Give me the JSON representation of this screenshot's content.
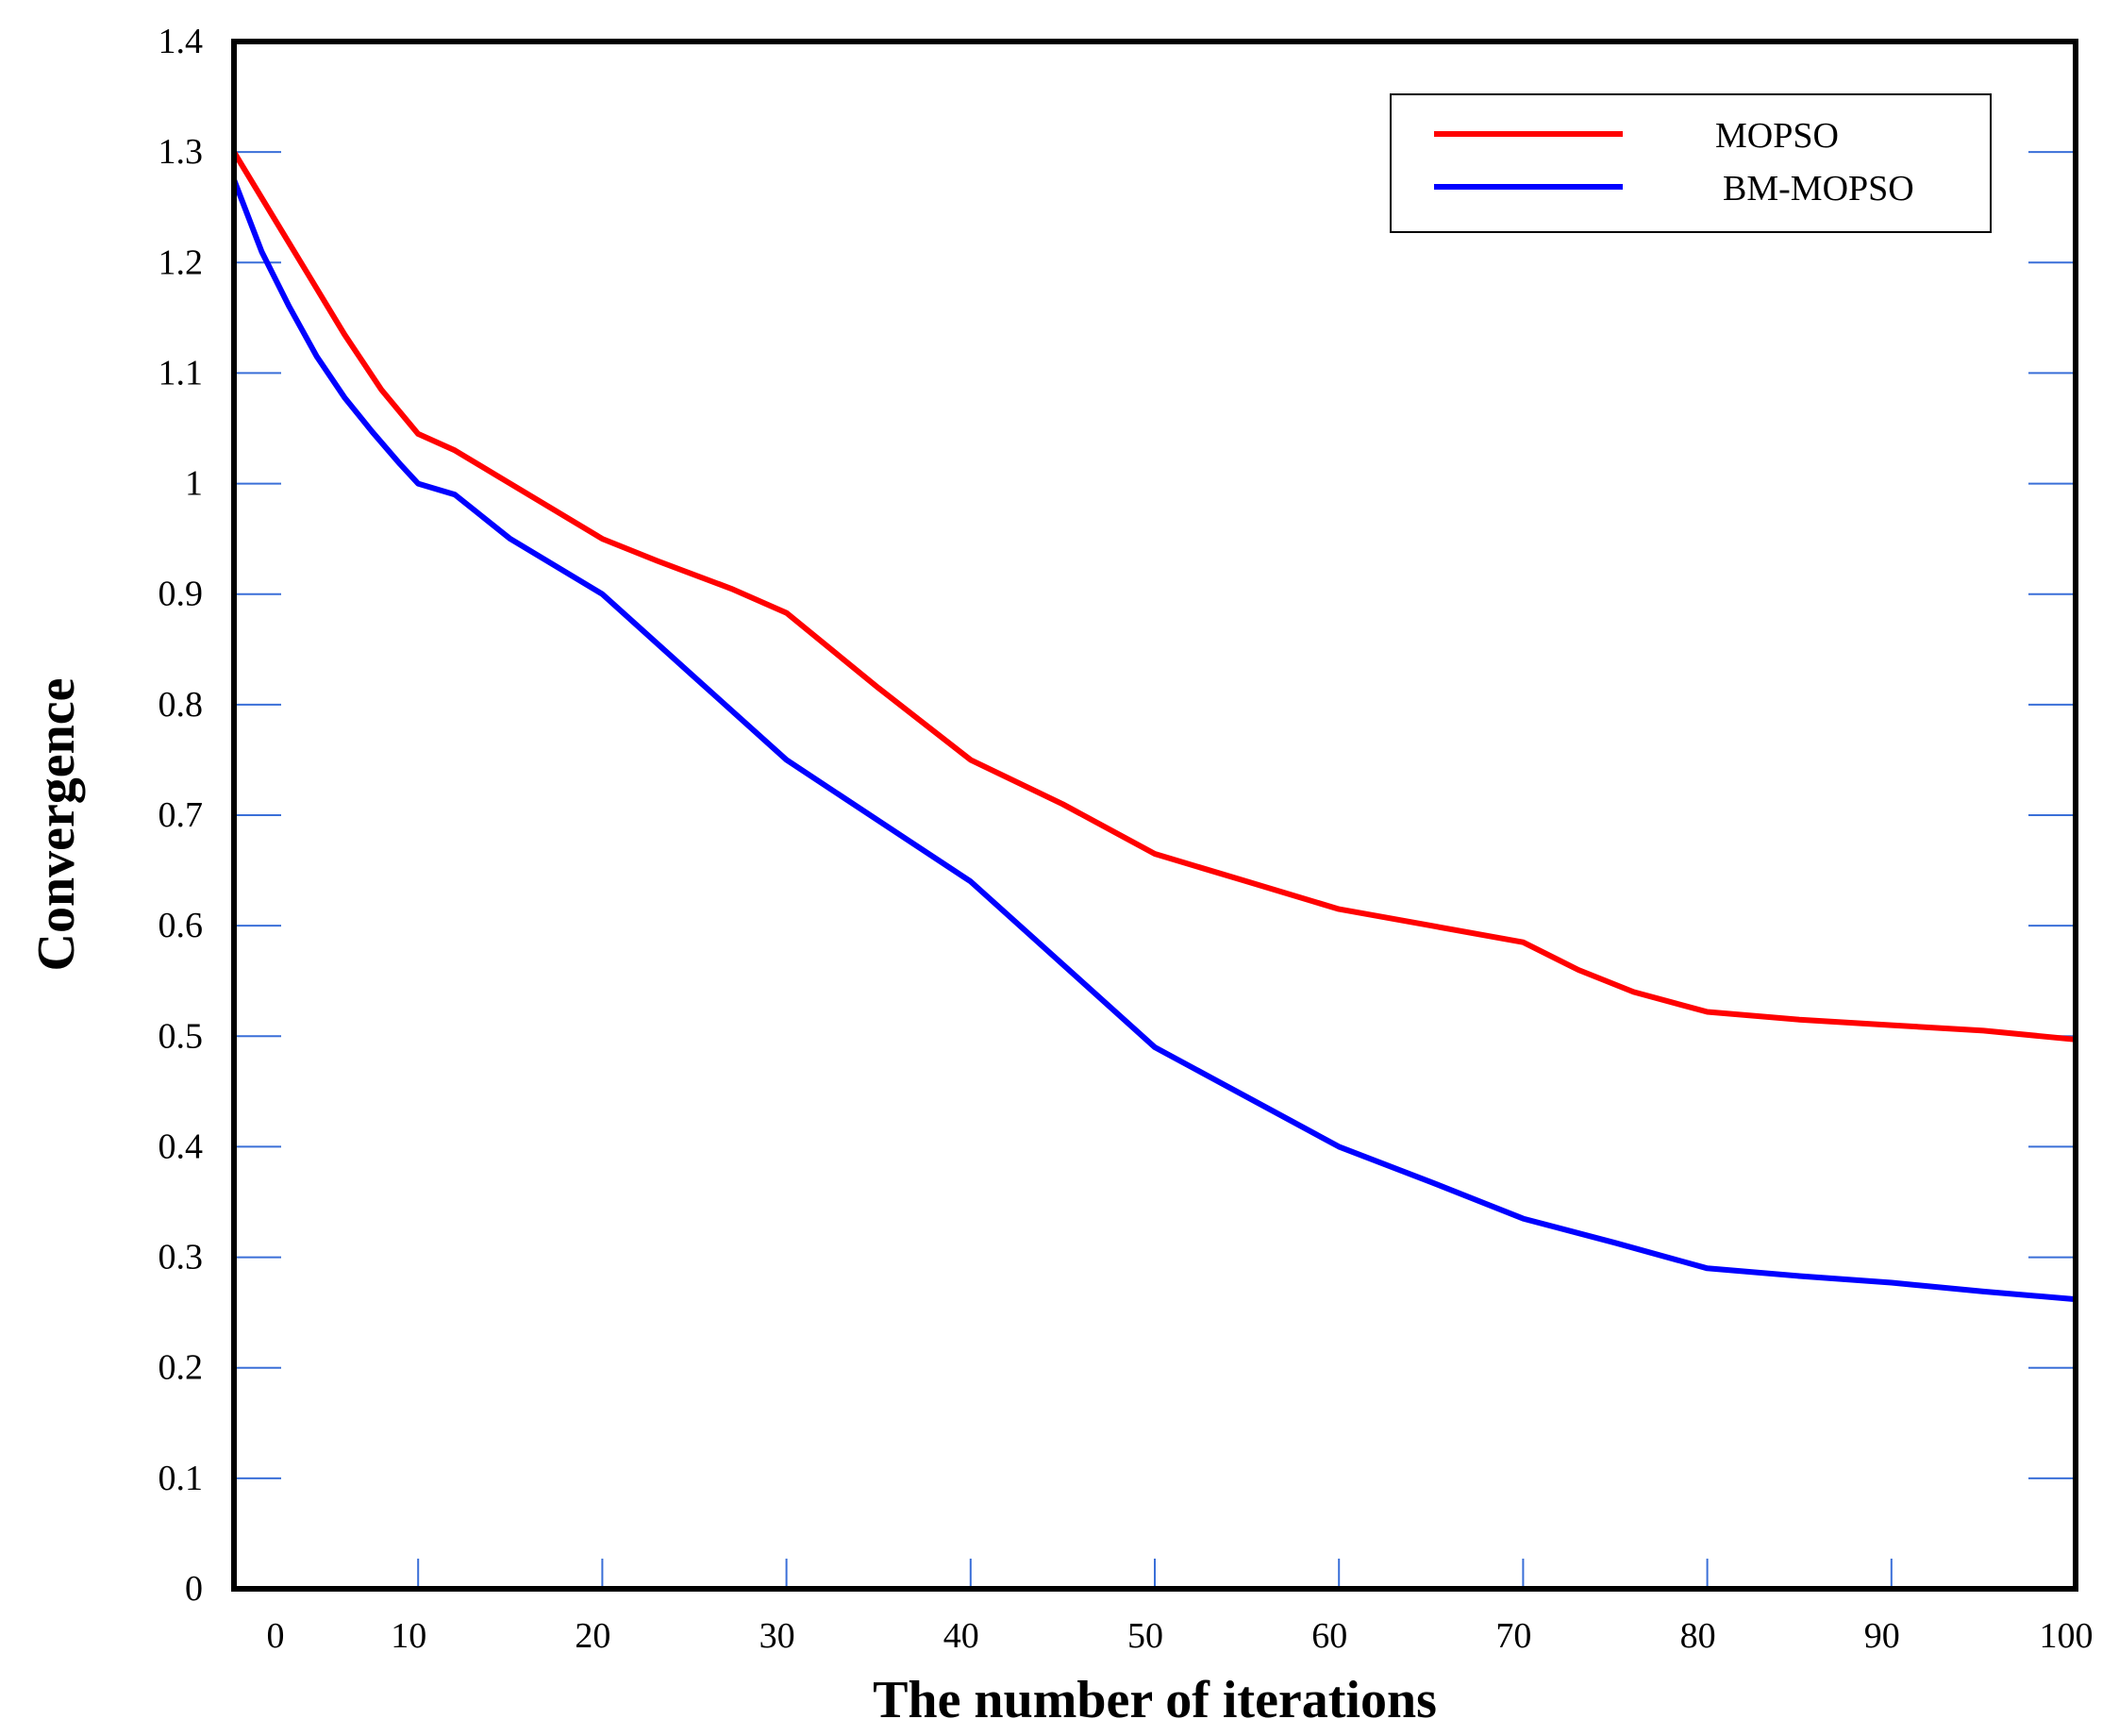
{
  "chart_data": {
    "type": "line",
    "title": "",
    "xlabel": "The number of iterations",
    "ylabel": "Convergence",
    "xlim": [
      0,
      100
    ],
    "ylim": [
      0,
      1.4
    ],
    "x_ticks": [
      {
        "value": 10,
        "label": "10"
      },
      {
        "value": 20,
        "label": "20"
      },
      {
        "value": 30,
        "label": "30"
      },
      {
        "value": 40,
        "label": "40"
      },
      {
        "value": 50,
        "label": "50"
      },
      {
        "value": 60,
        "label": "60"
      },
      {
        "value": 70,
        "label": "70"
      },
      {
        "value": 80,
        "label": "80"
      },
      {
        "value": 90,
        "label": "90"
      },
      {
        "value": 100,
        "label": "100"
      }
    ],
    "x_origin_label": "0",
    "y_ticks": [
      {
        "value": 0,
        "label": "0"
      },
      {
        "value": 0.1,
        "label": "0.1"
      },
      {
        "value": 0.2,
        "label": "0.2"
      },
      {
        "value": 0.3,
        "label": "0.3"
      },
      {
        "value": 0.4,
        "label": "0.4"
      },
      {
        "value": 0.5,
        "label": "0.5"
      },
      {
        "value": 0.6,
        "label": "0.6"
      },
      {
        "value": 0.7,
        "label": "0.7"
      },
      {
        "value": 0.8,
        "label": "0.8"
      },
      {
        "value": 0.9,
        "label": "0.9"
      },
      {
        "value": 1.0,
        "label": "1"
      },
      {
        "value": 1.1,
        "label": "1.1"
      },
      {
        "value": 1.2,
        "label": "1.2"
      },
      {
        "value": 1.3,
        "label": "1.3"
      },
      {
        "value": 1.4,
        "label": "1.4"
      }
    ],
    "grid": false,
    "legend_position": "top-right",
    "series": [
      {
        "name": "MOPSO",
        "color": "#ff0000",
        "x": [
          0,
          2,
          4,
          6,
          8,
          10,
          12,
          15,
          20,
          23,
          27,
          30,
          35,
          40,
          45,
          50,
          55,
          60,
          65,
          70,
          73,
          76,
          80,
          85,
          90,
          95,
          100
        ],
        "y": [
          1.3,
          1.245,
          1.19,
          1.135,
          1.085,
          1.045,
          1.03,
          1.0,
          0.95,
          0.93,
          0.905,
          0.883,
          0.815,
          0.75,
          0.71,
          0.665,
          0.64,
          0.615,
          0.6,
          0.585,
          0.56,
          0.54,
          0.522,
          0.515,
          0.51,
          0.505,
          0.497
        ]
      },
      {
        "name": "BM-MOPSO",
        "color": "#0000ff",
        "x": [
          0,
          1.5,
          3,
          4.5,
          6,
          7.5,
          9,
          10,
          12,
          15,
          20,
          25,
          30,
          35,
          40,
          45,
          50,
          55,
          60,
          65,
          70,
          75,
          80,
          85,
          90,
          95,
          100
        ],
        "y": [
          1.275,
          1.21,
          1.16,
          1.115,
          1.078,
          1.047,
          1.018,
          1.0,
          0.99,
          0.95,
          0.9,
          0.825,
          0.75,
          0.695,
          0.64,
          0.565,
          0.49,
          0.445,
          0.4,
          0.368,
          0.335,
          0.313,
          0.29,
          0.283,
          0.277,
          0.269,
          0.262
        ]
      }
    ]
  }
}
